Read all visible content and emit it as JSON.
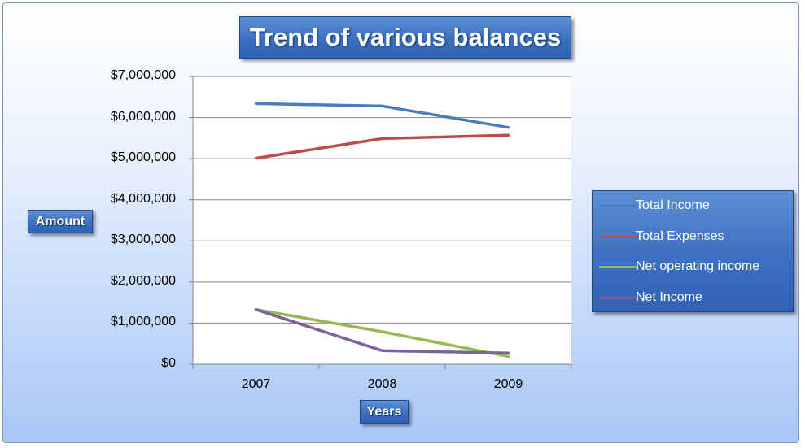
{
  "chart_data": {
    "type": "line",
    "title": "Trend of various balances",
    "xlabel": "Years",
    "ylabel": "Amount",
    "categories": [
      "2007",
      "2008",
      "2009"
    ],
    "ylim": [
      0,
      7000000
    ],
    "yticks": [
      0,
      1000000,
      2000000,
      3000000,
      4000000,
      5000000,
      6000000,
      7000000
    ],
    "ytick_labels": [
      "$0",
      "$1,000,000",
      "$2,000,000",
      "$3,000,000",
      "$4,000,000",
      "$5,000,000",
      "$6,000,000",
      "$7,000,000"
    ],
    "grid": true,
    "legend_position": "right",
    "series": [
      {
        "name": "Total Income",
        "color": "#4a7ebb",
        "values": [
          6340000,
          6280000,
          5760000
        ]
      },
      {
        "name": "Total Expenses",
        "color": "#be4b48",
        "values": [
          5010000,
          5490000,
          5570000
        ]
      },
      {
        "name": "Net operating income",
        "color": "#98b954",
        "values": [
          1330000,
          790000,
          190000
        ]
      },
      {
        "name": "Net Income",
        "color": "#7d60a0",
        "values": [
          1330000,
          330000,
          270000
        ]
      }
    ]
  }
}
